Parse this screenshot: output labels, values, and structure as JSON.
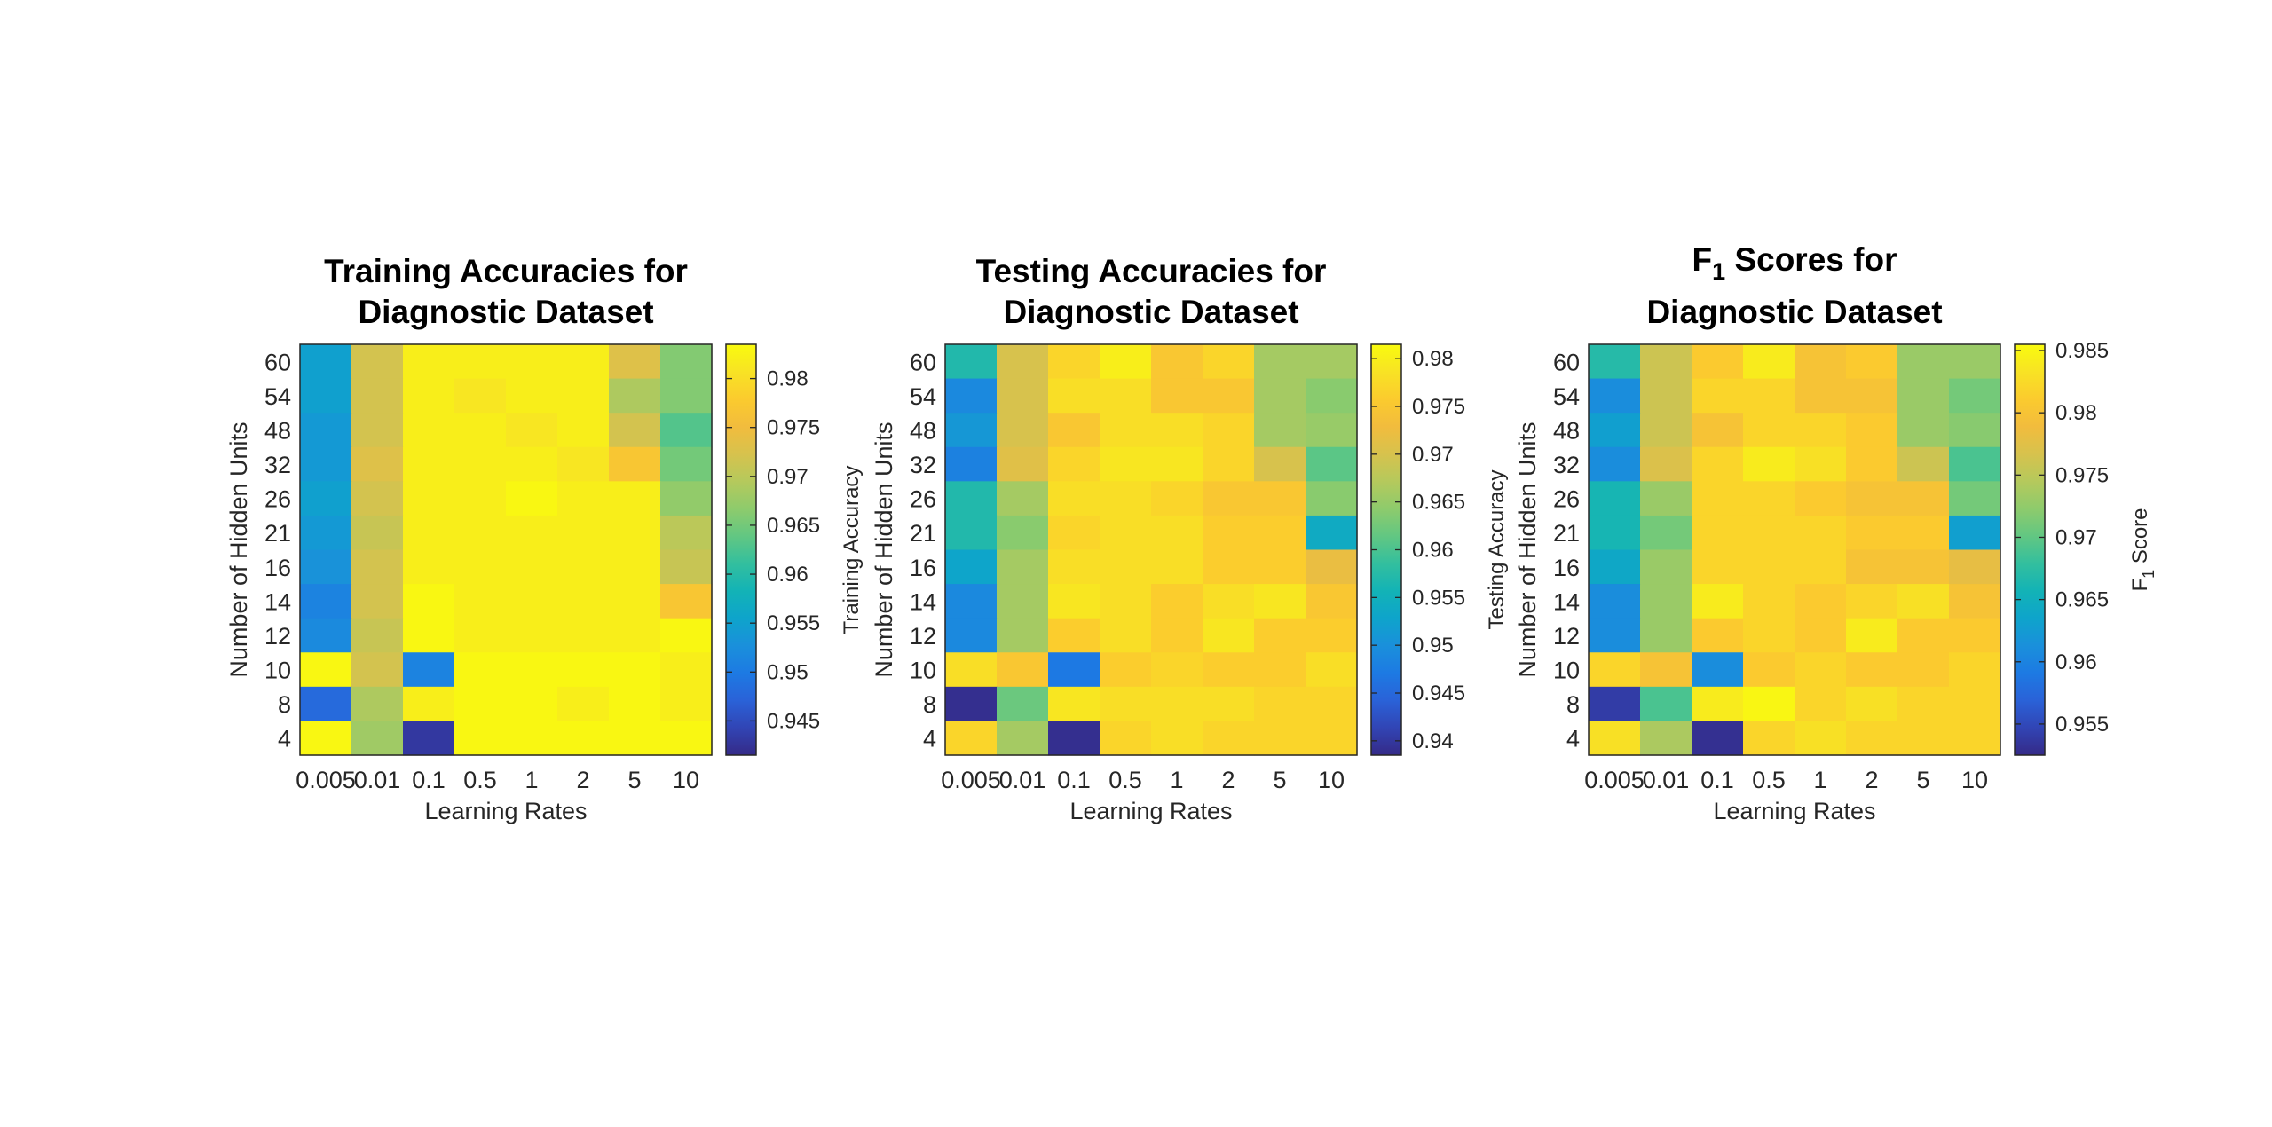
{
  "chart_data": [
    {
      "type": "heatmap",
      "title_lines": [
        "Training Accuracies for",
        "Diagnostic Dataset"
      ],
      "xlabel": "Learning Rates",
      "ylabel": "Number of Hidden Units",
      "x_categories": [
        "0.005",
        "0.01",
        "0.1",
        "0.5",
        "1",
        "2",
        "5",
        "10"
      ],
      "y_categories": [
        "60",
        "54",
        "48",
        "32",
        "26",
        "21",
        "16",
        "14",
        "12",
        "10",
        "8",
        "4"
      ],
      "colorbar": {
        "label": "Training Accuracy",
        "range": [
          0.9415,
          0.9835
        ],
        "ticks": [
          0.945,
          0.95,
          0.955,
          0.96,
          0.965,
          0.97,
          0.975,
          0.98
        ],
        "tick_labels": [
          "0.945",
          "0.95",
          "0.955",
          "0.96",
          "0.965",
          "0.97",
          "0.975",
          "0.98"
        ]
      },
      "values": [
        [
          0.955,
          0.972,
          0.982,
          0.982,
          0.982,
          0.982,
          0.973,
          0.966
        ],
        [
          0.955,
          0.972,
          0.982,
          0.981,
          0.982,
          0.982,
          0.969,
          0.966
        ],
        [
          0.954,
          0.972,
          0.982,
          0.982,
          0.981,
          0.982,
          0.972,
          0.963
        ],
        [
          0.954,
          0.973,
          0.982,
          0.982,
          0.982,
          0.981,
          0.977,
          0.965
        ],
        [
          0.955,
          0.972,
          0.982,
          0.982,
          0.983,
          0.982,
          0.982,
          0.967
        ],
        [
          0.954,
          0.971,
          0.982,
          0.982,
          0.982,
          0.982,
          0.982,
          0.97
        ],
        [
          0.953,
          0.972,
          0.982,
          0.982,
          0.982,
          0.982,
          0.982,
          0.971
        ],
        [
          0.951,
          0.972,
          0.983,
          0.982,
          0.982,
          0.982,
          0.982,
          0.977
        ],
        [
          0.952,
          0.971,
          0.983,
          0.982,
          0.982,
          0.982,
          0.982,
          0.983
        ],
        [
          0.983,
          0.972,
          0.951,
          0.983,
          0.983,
          0.983,
          0.983,
          0.982
        ],
        [
          0.948,
          0.969,
          0.982,
          0.983,
          0.983,
          0.982,
          0.983,
          0.982
        ],
        [
          0.983,
          0.968,
          0.943,
          0.983,
          0.983,
          0.983,
          0.983,
          0.983
        ]
      ]
    },
    {
      "type": "heatmap",
      "title_lines": [
        "Testing Accuracies for",
        "Diagnostic Dataset"
      ],
      "xlabel": "Learning Rates",
      "ylabel": "Number of Hidden Units",
      "x_categories": [
        "0.005",
        "0.01",
        "0.1",
        "0.5",
        "1",
        "2",
        "5",
        "10"
      ],
      "y_categories": [
        "60",
        "54",
        "48",
        "32",
        "26",
        "21",
        "16",
        "14",
        "12",
        "10",
        "8",
        "4"
      ],
      "colorbar": {
        "label": "Testing Accuracy",
        "range": [
          0.9385,
          0.9815
        ],
        "ticks": [
          0.94,
          0.945,
          0.95,
          0.955,
          0.96,
          0.965,
          0.97,
          0.975,
          0.98
        ],
        "tick_labels": [
          "0.94",
          "0.945",
          "0.95",
          "0.955",
          "0.96",
          "0.965",
          "0.97",
          "0.975",
          "0.98"
        ]
      },
      "values": [
        [
          0.957,
          0.97,
          0.977,
          0.98,
          0.975,
          0.977,
          0.966,
          0.966
        ],
        [
          0.949,
          0.97,
          0.978,
          0.978,
          0.975,
          0.975,
          0.966,
          0.964
        ],
        [
          0.951,
          0.97,
          0.975,
          0.978,
          0.978,
          0.977,
          0.966,
          0.965
        ],
        [
          0.948,
          0.971,
          0.977,
          0.979,
          0.979,
          0.977,
          0.97,
          0.961
        ],
        [
          0.957,
          0.966,
          0.978,
          0.978,
          0.977,
          0.975,
          0.975,
          0.964
        ],
        [
          0.957,
          0.964,
          0.977,
          0.978,
          0.978,
          0.976,
          0.976,
          0.954
        ],
        [
          0.953,
          0.966,
          0.978,
          0.978,
          0.978,
          0.976,
          0.976,
          0.972
        ],
        [
          0.949,
          0.966,
          0.979,
          0.978,
          0.976,
          0.978,
          0.979,
          0.975
        ],
        [
          0.949,
          0.966,
          0.976,
          0.978,
          0.976,
          0.979,
          0.976,
          0.976
        ],
        [
          0.978,
          0.975,
          0.947,
          0.976,
          0.977,
          0.976,
          0.976,
          0.978
        ],
        [
          0.939,
          0.962,
          0.979,
          0.978,
          0.978,
          0.978,
          0.977,
          0.977
        ],
        [
          0.977,
          0.966,
          0.939,
          0.977,
          0.978,
          0.977,
          0.977,
          0.977
        ]
      ]
    },
    {
      "type": "heatmap",
      "title_lines": [
        "F",
        "1",
        " Scores for",
        "Diagnostic Dataset"
      ],
      "xlabel": "Learning Rates",
      "ylabel": "Number of Hidden Units",
      "x_categories": [
        "0.005",
        "0.01",
        "0.1",
        "0.5",
        "1",
        "2",
        "5",
        "10"
      ],
      "y_categories": [
        "60",
        "54",
        "48",
        "32",
        "26",
        "21",
        "16",
        "14",
        "12",
        "10",
        "8",
        "4"
      ],
      "colorbar": {
        "label_parts": [
          "F",
          "1",
          " Score"
        ],
        "range": [
          0.9525,
          0.9855
        ],
        "ticks": [
          0.955,
          0.96,
          0.965,
          0.97,
          0.975,
          0.98,
          0.985
        ],
        "tick_labels": [
          "0.955",
          "0.96",
          "0.965",
          "0.97",
          "0.975",
          "0.98",
          "0.985"
        ]
      },
      "values": [
        [
          0.967,
          0.976,
          0.981,
          0.984,
          0.98,
          0.981,
          0.973,
          0.973
        ],
        [
          0.961,
          0.976,
          0.982,
          0.982,
          0.98,
          0.98,
          0.973,
          0.971
        ],
        [
          0.963,
          0.976,
          0.98,
          0.982,
          0.982,
          0.981,
          0.973,
          0.972
        ],
        [
          0.961,
          0.977,
          0.982,
          0.984,
          0.983,
          0.981,
          0.976,
          0.969
        ],
        [
          0.966,
          0.973,
          0.982,
          0.982,
          0.981,
          0.98,
          0.98,
          0.971
        ],
        [
          0.966,
          0.971,
          0.982,
          0.982,
          0.982,
          0.981,
          0.981,
          0.963
        ],
        [
          0.964,
          0.973,
          0.982,
          0.982,
          0.982,
          0.98,
          0.98,
          0.978
        ],
        [
          0.961,
          0.973,
          0.984,
          0.982,
          0.981,
          0.982,
          0.983,
          0.98
        ],
        [
          0.961,
          0.973,
          0.981,
          0.982,
          0.981,
          0.984,
          0.981,
          0.981
        ],
        [
          0.982,
          0.98,
          0.961,
          0.981,
          0.982,
          0.981,
          0.981,
          0.982
        ],
        [
          0.954,
          0.969,
          0.984,
          0.985,
          0.982,
          0.983,
          0.982,
          0.982
        ],
        [
          0.983,
          0.974,
          0.953,
          0.982,
          0.983,
          0.982,
          0.982,
          0.982
        ]
      ]
    }
  ]
}
